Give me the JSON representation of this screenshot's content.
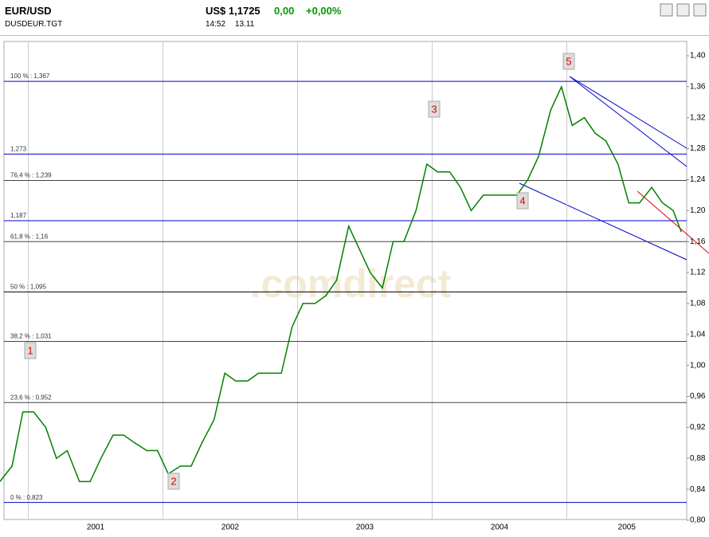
{
  "header": {
    "symbol": "EUR/USD",
    "code": "DUSDEUR.TGT",
    "price": "US$ 1,1725",
    "change": "0,00",
    "change_pct": "+0,00%",
    "time": "14:52",
    "date": "13.11"
  },
  "chart_data": {
    "type": "line",
    "watermark": ".comdirect",
    "x": [
      2000.79,
      2000.88,
      2000.96,
      2001.04,
      2001.13,
      2001.21,
      2001.29,
      2001.38,
      2001.46,
      2001.54,
      2001.63,
      2001.71,
      2001.79,
      2001.88,
      2001.96,
      2002.04,
      2002.13,
      2002.21,
      2002.29,
      2002.38,
      2002.46,
      2002.54,
      2002.63,
      2002.71,
      2002.79,
      2002.88,
      2002.96,
      2003.04,
      2003.13,
      2003.21,
      2003.29,
      2003.38,
      2003.46,
      2003.54,
      2003.63,
      2003.71,
      2003.79,
      2003.88,
      2003.96,
      2004.04,
      2004.13,
      2004.21,
      2004.29,
      2004.38,
      2004.46,
      2004.54,
      2004.63,
      2004.71,
      2004.79,
      2004.88,
      2004.96,
      2005.04,
      2005.13,
      2005.21,
      2005.29,
      2005.38,
      2005.46,
      2005.54,
      2005.63,
      2005.71,
      2005.79,
      2005.85
    ],
    "series": [
      {
        "color": "#008000",
        "values": [
          0.85,
          0.87,
          0.94,
          0.94,
          0.92,
          0.88,
          0.89,
          0.85,
          0.85,
          0.88,
          0.91,
          0.91,
          0.9,
          0.89,
          0.89,
          0.86,
          0.87,
          0.87,
          0.9,
          0.93,
          0.99,
          0.98,
          0.98,
          0.99,
          0.99,
          0.99,
          1.05,
          1.08,
          1.08,
          1.09,
          1.11,
          1.18,
          1.15,
          1.12,
          1.1,
          1.16,
          1.16,
          1.2,
          1.26,
          1.25,
          1.25,
          1.23,
          1.2,
          1.22,
          1.22,
          1.22,
          1.22,
          1.24,
          1.27,
          1.33,
          1.36,
          1.31,
          1.32,
          1.3,
          1.29,
          1.26,
          1.21,
          1.21,
          1.23,
          1.21,
          1.2,
          1.1725
        ]
      }
    ],
    "xlim": [
      2000.82,
      2005.89
    ],
    "xticks": [
      {
        "value": 2001,
        "label": "2001"
      },
      {
        "value": 2002,
        "label": "2002"
      },
      {
        "value": 2003,
        "label": "2003"
      },
      {
        "value": 2004,
        "label": "2004"
      },
      {
        "value": 2005,
        "label": "2005"
      }
    ],
    "ylim": [
      0.8,
      1.4
    ],
    "yticks": [
      {
        "value": 0.8,
        "label": "0,80"
      },
      {
        "value": 0.84,
        "label": "0,84"
      },
      {
        "value": 0.88,
        "label": "0,88"
      },
      {
        "value": 0.92,
        "label": "0,92"
      },
      {
        "value": 0.96,
        "label": "0,96"
      },
      {
        "value": 1.0,
        "label": "1,00"
      },
      {
        "value": 1.04,
        "label": "1,04"
      },
      {
        "value": 1.08,
        "label": "1,08"
      },
      {
        "value": 1.12,
        "label": "1,12"
      },
      {
        "value": 1.16,
        "label": "1,16"
      },
      {
        "value": 1.2,
        "label": "1,20"
      },
      {
        "value": 1.24,
        "label": "1,24"
      },
      {
        "value": 1.28,
        "label": "1,28"
      },
      {
        "value": 1.32,
        "label": "1,32"
      },
      {
        "value": 1.36,
        "label": "1,36"
      },
      {
        "value": 1.4,
        "label": "1,40"
      }
    ],
    "grid": true,
    "levels": [
      {
        "value": 1.367,
        "label": "100 % : 1,367",
        "color": "#0000cc"
      },
      {
        "value": 1.273,
        "label": "1,273",
        "color": "#0000cc"
      },
      {
        "value": 1.239,
        "label": "76,4 % : 1,239",
        "color": "#444444"
      },
      {
        "value": 1.187,
        "label": "1,187",
        "color": "#0000cc"
      },
      {
        "value": 1.16,
        "label": "61,8 % : 1,16",
        "color": "#444444"
      },
      {
        "value": 1.095,
        "label": "50 % : 1,095",
        "color": "#000000"
      },
      {
        "value": 1.031,
        "label": "38,2 % : 1,031",
        "color": "#444444"
      },
      {
        "value": 0.952,
        "label": "23,6 % : 0,952",
        "color": "#444444"
      },
      {
        "value": 0.823,
        "label": "0 % : 0,823",
        "color": "#0000cc"
      }
    ],
    "waves": [
      "1",
      "2",
      "3",
      "4",
      "5"
    ]
  }
}
